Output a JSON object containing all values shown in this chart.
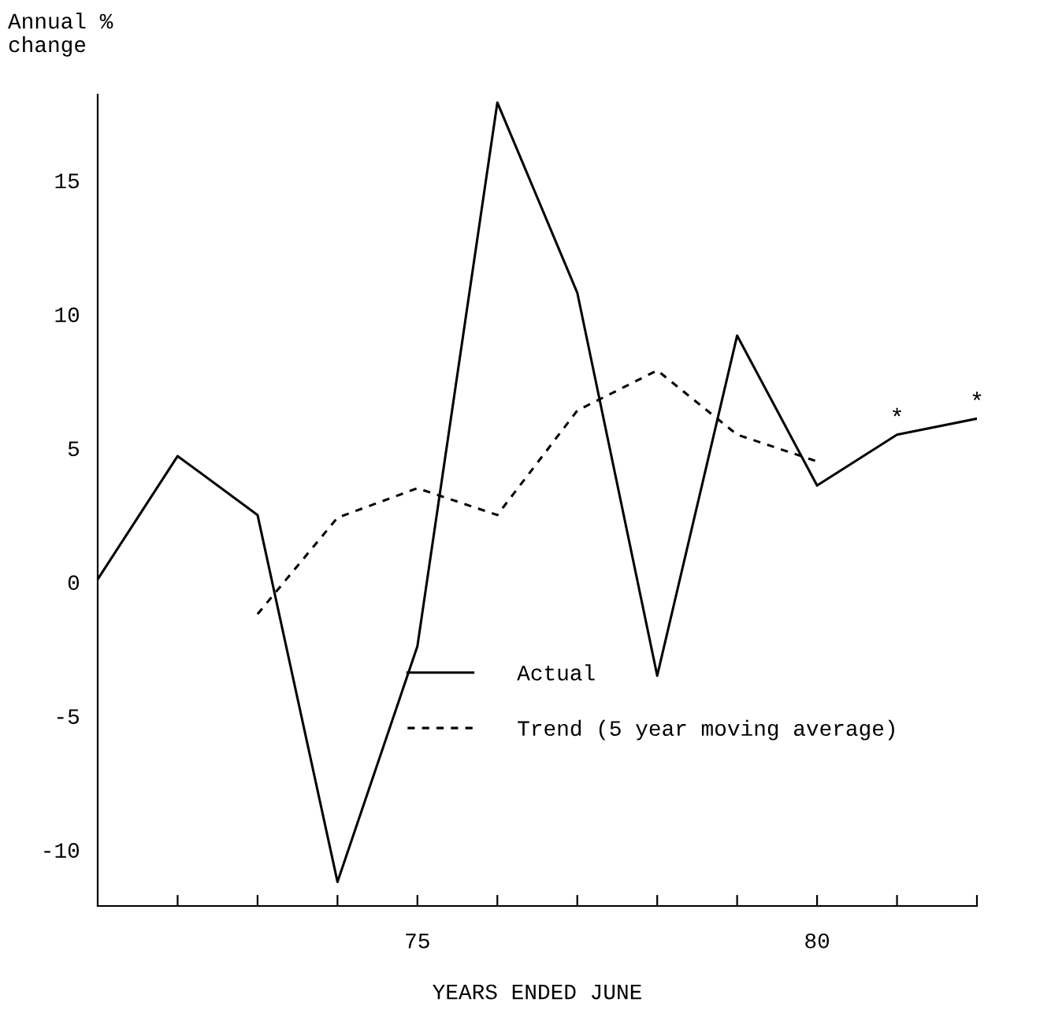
{
  "chart_data": {
    "type": "line",
    "xlabel": "YEARS ENDED JUNE",
    "ylabel": "Annual %\nchange",
    "xlim": [
      71,
      82
    ],
    "ylim": [
      -12.1,
      18.2
    ],
    "xticks": [
      {
        "value": 72,
        "label": null
      },
      {
        "value": 73,
        "label": null
      },
      {
        "value": 74,
        "label": null
      },
      75,
      {
        "value": 76,
        "label": null
      },
      {
        "value": 77,
        "label": null
      },
      {
        "value": 78,
        "label": null
      },
      {
        "value": 79,
        "label": null
      },
      80,
      {
        "value": 81,
        "label": null
      },
      {
        "value": 82,
        "label": null
      }
    ],
    "yticks": [
      -10,
      -5,
      0,
      5,
      10,
      15
    ],
    "grid": false,
    "legend": "bottom right",
    "marker": "none",
    "series": [
      {
        "name": "Actual",
        "color": "#000000",
        "line_style": "solid",
        "x": [
          71,
          72,
          73,
          74,
          75,
          76,
          77,
          78,
          79,
          80,
          81,
          82
        ],
        "values": [
          0.1,
          4.7,
          2.5,
          -11.2,
          -2.4,
          17.9,
          10.8,
          -3.5,
          9.2,
          3.6,
          5.5,
          6.1
        ]
      },
      {
        "name": "Trend (5 year moving average)",
        "color": "#000000",
        "line_style": "dashed",
        "x": [
          73,
          74,
          75,
          76,
          77,
          78,
          79,
          80
        ],
        "values": [
          -1.2,
          2.4,
          3.5,
          2.5,
          6.4,
          7.9,
          5.5,
          4.5
        ]
      }
    ],
    "annotations": [
      {
        "text": "*",
        "x": 81,
        "y": 5.5
      },
      {
        "text": "*",
        "x": 82,
        "y": 6.1
      }
    ]
  }
}
